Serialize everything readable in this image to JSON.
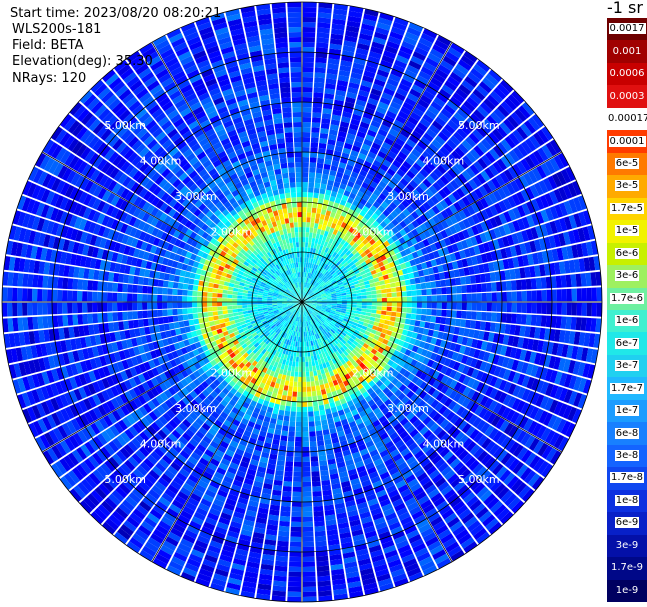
{
  "info": {
    "start_time": "Start time: 2023/08/20 08:20:21",
    "device": "WLS200s-181",
    "field": "Field: BETA",
    "elevation": "Elevation(deg): 35.30",
    "nrays": "NRays: 120"
  },
  "colorbar": {
    "units": "-1 sr",
    "labels": [
      "0.0017",
      "0.001",
      "0.0006",
      "0.0003",
      "0.00017",
      "0.0001",
      "6e-5",
      "3e-5",
      "1.7e-5",
      "1e-5",
      "6e-6",
      "3e-6",
      "1.7e-6",
      "1e-6",
      "6e-7",
      "3e-7",
      "1.7e-7",
      "1e-7",
      "6e-8",
      "3e-8",
      "1.7e-8",
      "1e-8",
      "6e-9",
      "3e-9",
      "1.7e-9",
      "1e-9"
    ],
    "colors": [
      "#6e0000",
      "#a00000",
      "#c80000",
      "#e01010",
      "#ffffff",
      "#ff3c00",
      "#ff7a00",
      "#ffaa00",
      "#ffd400",
      "#f2f200",
      "#c8f000",
      "#9ef060",
      "#6ef0a0",
      "#40f0d0",
      "#20e8e8",
      "#20d0f0",
      "#20b8ff",
      "#1c9cff",
      "#1880ff",
      "#1464ff",
      "#1048f0",
      "#0c30e0",
      "#0820c8",
      "#0410a8",
      "#000888",
      "#000060"
    ],
    "white_labels": [
      1,
      2,
      3,
      23,
      24,
      25
    ]
  },
  "chart_data": {
    "type": "heatmap",
    "projection": "polar PPI",
    "field": "BETA",
    "elevation_deg": 35.3,
    "n_rays": 120,
    "range_rings_km": [
      1,
      2,
      3,
      4,
      5,
      6
    ],
    "range_ring_labels": [
      "2.00km",
      "3.00km",
      "4.00km",
      "5.00km"
    ],
    "azimuth_spokes_deg": [
      0,
      30,
      60,
      90,
      120,
      150,
      180,
      210,
      240,
      270,
      300,
      330
    ],
    "max_range_km": 6,
    "value_profile": {
      "range_km": [
        0,
        0.8,
        1.4,
        1.75,
        2.0,
        2.3,
        2.8,
        3.5,
        4.5,
        6.0
      ],
      "log10_beta": [
        -6.6,
        -6.9,
        -6.4,
        -5.0,
        -5.8,
        -7.3,
        -7.8,
        -7.9,
        -8.0,
        -8.1
      ]
    },
    "color_scale": "jet, log-scaled 1e-9 to 0.0017"
  }
}
